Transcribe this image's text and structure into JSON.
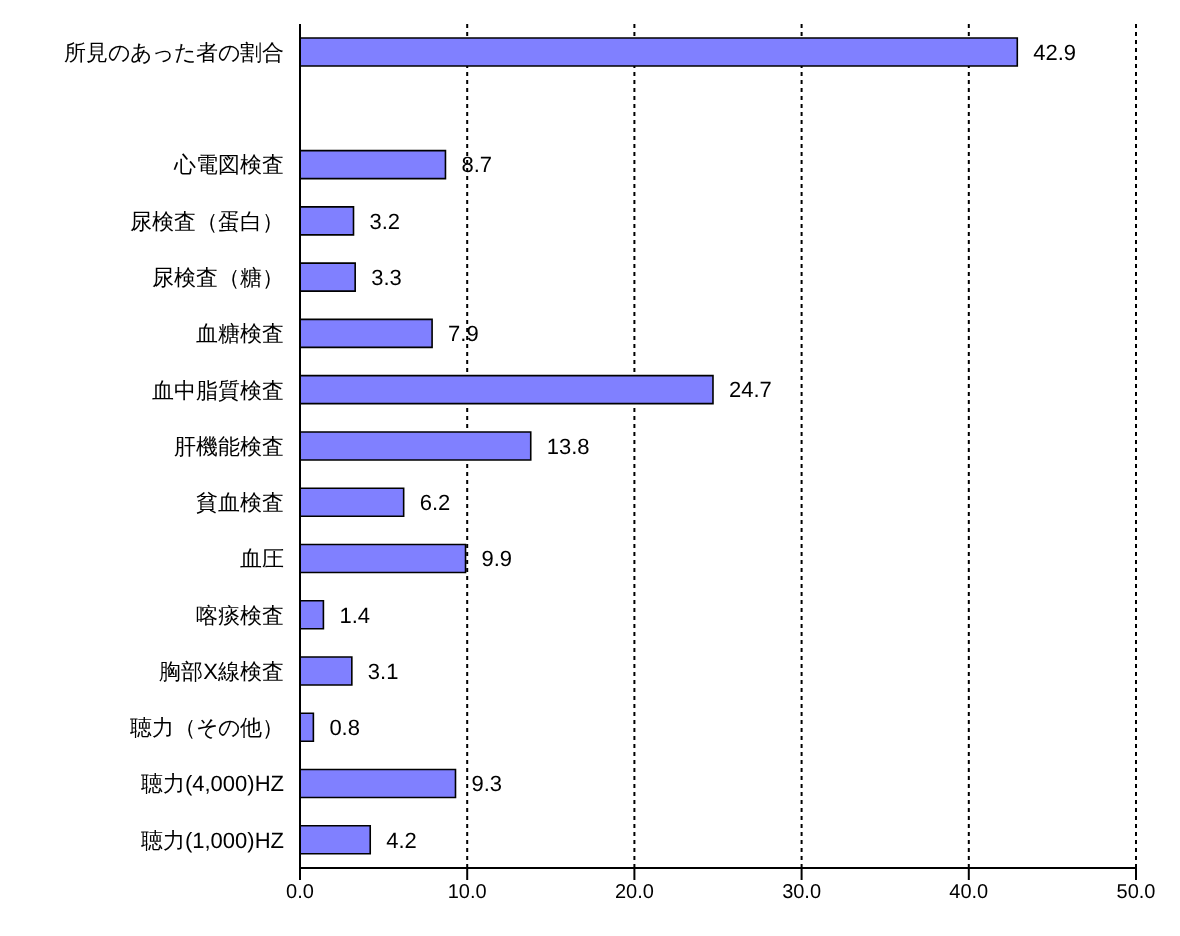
{
  "chart_data": {
    "type": "bar",
    "orientation": "horizontal",
    "categories": [
      "所見のあった者の割合",
      null,
      "心電図検査",
      "尿検査（蛋白）",
      "尿検査（糖）",
      "血糖検査",
      "血中脂質検査",
      "肝機能検査",
      "貧血検査",
      "血圧",
      "喀痰検査",
      "胸部X線検査",
      "聴力（その他）",
      "聴力(4,000)HZ",
      "聴力(1,000)HZ"
    ],
    "values": [
      42.9,
      null,
      8.7,
      3.2,
      3.3,
      7.9,
      24.7,
      13.8,
      6.2,
      9.9,
      1.4,
      3.1,
      0.8,
      9.3,
      4.2
    ],
    "color": "#8080ff",
    "xlim": [
      0,
      50
    ],
    "xticks": [
      {
        "value": 0,
        "label": "0.0"
      },
      {
        "value": 10,
        "label": "10.0"
      },
      {
        "value": 20,
        "label": "20.0"
      },
      {
        "value": 30,
        "label": "30.0"
      },
      {
        "value": 40,
        "label": "40.0"
      },
      {
        "value": 50,
        "label": "50.0"
      }
    ],
    "grid": "x",
    "data_labels": true,
    "legend": false
  }
}
